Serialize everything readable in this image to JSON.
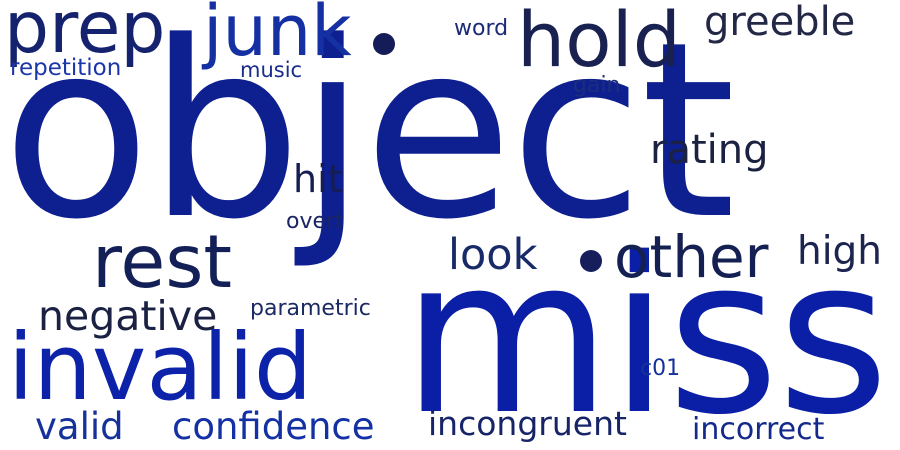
{
  "word_cloud": {
    "words": [
      {
        "text": "object",
        "color": "#0e1f8f"
      },
      {
        "text": "miss",
        "color": "#0b1ea6"
      },
      {
        "text": "prep",
        "color": "#15236e"
      },
      {
        "text": "junk",
        "color": "#1430a2"
      },
      {
        "text": "hold",
        "color": "#18214f"
      },
      {
        "text": "greeble",
        "color": "#232847"
      },
      {
        "text": "word",
        "color": "#1c2a78"
      },
      {
        "text": "repetition",
        "color": "#1b36a8"
      },
      {
        "text": "music",
        "color": "#182c8c"
      },
      {
        "text": "gain",
        "color": "#1b2e7d"
      },
      {
        "text": "rating",
        "color": "#1b2140"
      },
      {
        "text": "hit",
        "color": "#151d52"
      },
      {
        "text": "overt",
        "color": "#1a2565"
      },
      {
        "text": "rest",
        "color": "#131f57"
      },
      {
        "text": "look",
        "color": "#182a68"
      },
      {
        "text": "other",
        "color": "#141f52"
      },
      {
        "text": "high",
        "color": "#1c2550"
      },
      {
        "text": "negative",
        "color": "#1b2142"
      },
      {
        "text": "parametric",
        "color": "#1c2a63"
      },
      {
        "text": "invalid",
        "color": "#0c22a9"
      },
      {
        "text": "c01",
        "color": "#15319a"
      },
      {
        "text": "valid",
        "color": "#15319a"
      },
      {
        "text": "confidence",
        "color": "#1330a4"
      },
      {
        "text": "incongruent",
        "color": "#172468"
      },
      {
        "text": "incorrect",
        "color": "#132a8c"
      }
    ],
    "dots": [
      {
        "name": "dot-after-junk",
        "color": "#141d58"
      },
      {
        "name": "dot-before-other",
        "color": "#161f5c"
      }
    ]
  }
}
